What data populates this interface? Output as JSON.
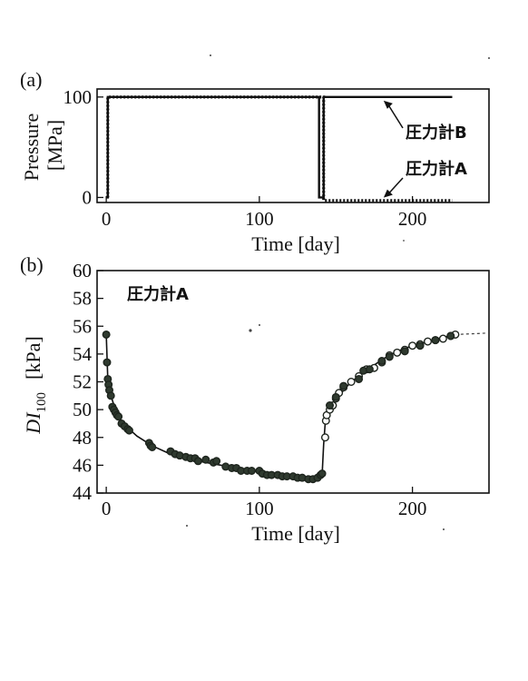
{
  "chart_data": [
    {
      "panel_label": "(a)",
      "type": "line",
      "ylabel_line1": "Pressure",
      "ylabel_line2": "[MPa]",
      "xlabel": "Time [day]",
      "xlim": [
        -6,
        250
      ],
      "ylim": [
        -5,
        108
      ],
      "xticks": [
        0,
        100,
        200
      ],
      "xtick_labels": [
        "0",
        "100",
        "200"
      ],
      "yticks": [
        0,
        100
      ],
      "ytick_labels": [
        "0",
        "100"
      ],
      "series": [
        {
          "name": "圧力計B",
          "style": "solid",
          "x": [
            0,
            1,
            1,
            139,
            139,
            142,
            142,
            226
          ],
          "y": [
            0,
            0,
            100,
            100,
            0,
            0,
            100,
            100
          ]
        },
        {
          "name": "圧力計A",
          "style": "dotted",
          "x": [
            1,
            1,
            142,
            142,
            226
          ],
          "y": [
            0,
            100,
            100,
            -3,
            -3
          ]
        }
      ],
      "annotations": [
        {
          "text": "圧力計B",
          "target": [
            180,
            100
          ]
        },
        {
          "text": "圧力計A",
          "target": [
            180,
            -2
          ]
        }
      ]
    },
    {
      "panel_label": "(b)",
      "type": "scatter",
      "ylabel": "DI",
      "ylabel_sub": "100",
      "ylabel_unit": "[kPa]",
      "xlabel": "Time [day]",
      "annotation": "圧力計A",
      "xlim": [
        -6,
        250
      ],
      "ylim": [
        44,
        60
      ],
      "xticks": [
        0,
        100,
        200
      ],
      "xtick_labels": [
        "0",
        "100",
        "200"
      ],
      "yticks": [
        44,
        46,
        48,
        50,
        52,
        54,
        56,
        58,
        60
      ],
      "ytick_labels": [
        "44",
        "46",
        "48",
        "50",
        "52",
        "54",
        "56",
        "58",
        "60"
      ],
      "fit_curve": {
        "x": [
          0,
          1,
          3,
          6,
          10,
          15,
          20,
          30,
          40,
          50,
          60,
          70,
          80,
          90,
          100,
          110,
          120,
          130,
          138,
          141,
          142,
          143,
          146,
          150,
          155,
          160,
          170,
          180,
          190,
          200,
          210,
          220,
          228
        ],
        "y": [
          55.4,
          52.2,
          51.0,
          50.0,
          49.2,
          48.6,
          48.1,
          47.4,
          46.9,
          46.5,
          46.3,
          46.1,
          45.9,
          45.7,
          45.5,
          45.3,
          45.2,
          45.1,
          45.0,
          45.3,
          47.5,
          49.0,
          49.8,
          50.6,
          51.4,
          52.0,
          52.8,
          53.6,
          54.2,
          54.6,
          54.9,
          55.2,
          55.4
        ]
      },
      "dashed_tail": {
        "x": [
          228,
          248
        ],
        "y": [
          55.4,
          55.5
        ]
      },
      "points_filled": {
        "x": [
          0,
          0.5,
          1,
          1.5,
          2,
          3,
          4,
          5,
          6,
          7,
          8,
          10,
          12,
          14,
          15,
          28,
          29,
          30,
          42,
          45,
          48,
          52,
          55,
          58,
          60,
          65,
          70,
          72,
          78,
          82,
          85,
          88,
          92,
          95,
          100,
          102,
          105,
          108,
          112,
          115,
          118,
          122,
          125,
          128,
          132,
          135,
          138,
          140,
          141
        ],
        "y": [
          55.4,
          53.4,
          52.2,
          51.8,
          51.4,
          51.0,
          50.2,
          50.0,
          49.8,
          49.6,
          49.5,
          49.0,
          48.8,
          48.6,
          48.5,
          47.6,
          47.4,
          47.3,
          47.0,
          46.8,
          46.7,
          46.6,
          46.5,
          46.5,
          46.3,
          46.4,
          46.2,
          46.3,
          45.9,
          45.8,
          45.8,
          45.6,
          45.6,
          45.6,
          45.6,
          45.4,
          45.3,
          45.3,
          45.3,
          45.2,
          45.2,
          45.2,
          45.1,
          45.1,
          45.0,
          45.0,
          45.1,
          45.3,
          45.4
        ]
      },
      "points_open": {
        "x": [
          143,
          143.5,
          144,
          146,
          148,
          150,
          152,
          155,
          160,
          165,
          170,
          175,
          180,
          185,
          190,
          195,
          200,
          205,
          210,
          215,
          220,
          225,
          228
        ],
        "y": [
          48.0,
          49.2,
          49.6,
          50.0,
          50.3,
          50.8,
          51.2,
          51.6,
          52.0,
          52.4,
          52.9,
          53.0,
          53.4,
          53.9,
          54.1,
          54.3,
          54.6,
          54.7,
          54.9,
          55.0,
          55.1,
          55.3,
          55.4
        ]
      },
      "points_filled_late": {
        "x": [
          146,
          150,
          155,
          165,
          168,
          172,
          180,
          185,
          195,
          205,
          215,
          225
        ],
        "y": [
          50.3,
          50.9,
          51.7,
          52.2,
          52.8,
          52.9,
          53.5,
          53.8,
          54.2,
          54.6,
          55.0,
          55.3
        ]
      }
    }
  ]
}
